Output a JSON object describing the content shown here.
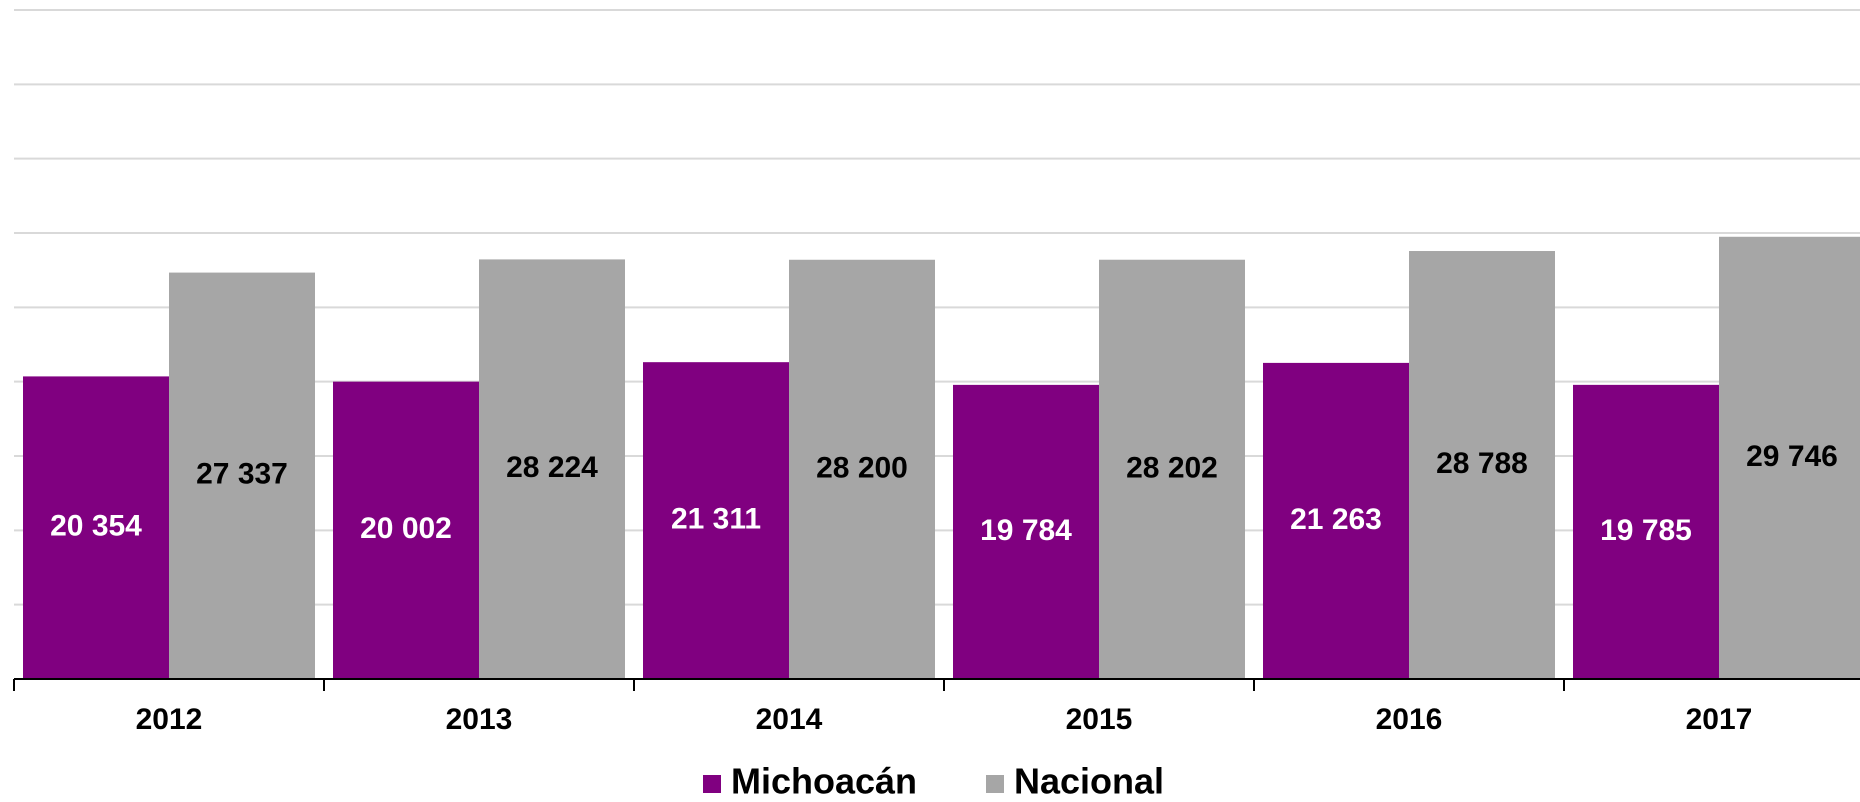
{
  "chart_data": {
    "type": "bar",
    "categories": [
      "2012",
      "2013",
      "2014",
      "2015",
      "2016",
      "2017"
    ],
    "series": [
      {
        "name": "Michoacán",
        "color": "#800080",
        "values": [
          20354,
          20002,
          21311,
          19784,
          21263,
          19785
        ],
        "value_labels": [
          "20 354",
          "20 002",
          "21 311",
          "19 784",
          "21 263",
          "19 785"
        ],
        "label_color": "#ffffff"
      },
      {
        "name": "Nacional",
        "color": "#a6a6a6",
        "values": [
          27337,
          28224,
          28200,
          28202,
          28788,
          29746
        ],
        "value_labels": [
          "27 337",
          "28 224",
          "28 200",
          "28 202",
          "28 788",
          "29 746"
        ],
        "label_color": "#000000"
      }
    ],
    "ylim": [
      0,
      45000
    ],
    "yticks": [
      0,
      5000,
      10000,
      15000,
      20000,
      25000,
      30000,
      35000,
      40000,
      45000
    ],
    "grid": true,
    "legend": "bottom"
  }
}
